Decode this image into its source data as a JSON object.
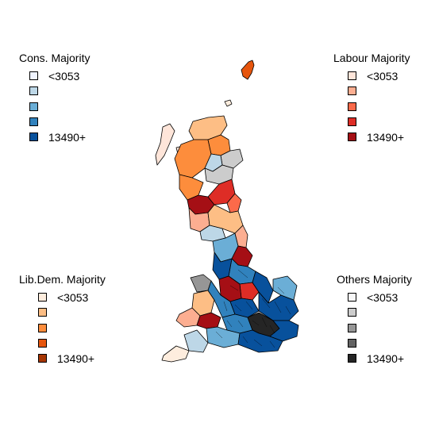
{
  "legends": [
    {
      "id": "cons",
      "title": "Cons. Majority",
      "items": [
        {
          "label": "<3053",
          "color": "#EFF3FF"
        },
        {
          "label": "",
          "color": "#BDD7E7"
        },
        {
          "label": "",
          "color": "#6BAED6"
        },
        {
          "label": "",
          "color": "#3182BD"
        },
        {
          "label": "13490+",
          "color": "#08519C"
        }
      ]
    },
    {
      "id": "labour",
      "title": "Labour Majority",
      "items": [
        {
          "label": "<3053",
          "color": "#FEE5D9"
        },
        {
          "label": "",
          "color": "#FCAE91"
        },
        {
          "label": "",
          "color": "#FB6A4A"
        },
        {
          "label": "",
          "color": "#DE2D26"
        },
        {
          "label": "13490+",
          "color": "#A50F15"
        }
      ]
    },
    {
      "id": "libdem",
      "title": "Lib.Dem. Majority",
      "items": [
        {
          "label": "<3053",
          "color": "#FEEDDE"
        },
        {
          "label": "",
          "color": "#FDBE85"
        },
        {
          "label": "",
          "color": "#FD8D3C"
        },
        {
          "label": "",
          "color": "#E6550D"
        },
        {
          "label": "13490+",
          "color": "#A63603"
        }
      ]
    },
    {
      "id": "others",
      "title": "Others Majority",
      "items": [
        {
          "label": "<3053",
          "color": "#F7F7F7"
        },
        {
          "label": "",
          "color": "#CCCCCC"
        },
        {
          "label": "",
          "color": "#969696"
        },
        {
          "label": "",
          "color": "#636363"
        },
        {
          "label": "13490+",
          "color": "#252525"
        }
      ]
    }
  ]
}
